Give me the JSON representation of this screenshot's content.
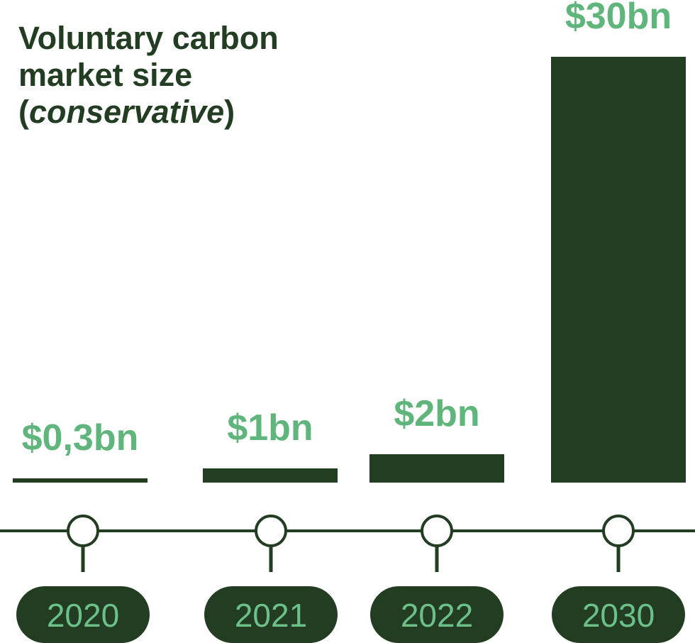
{
  "title": {
    "line1": "Voluntary carbon",
    "line2": "market size",
    "open_paren": "(",
    "qualifier": "conservative",
    "close_paren": ")"
  },
  "colors": {
    "bar": "#223d22",
    "value_label": "#5fb57b",
    "year_label": "#6cc08a",
    "timeline": "#223d22",
    "marker_fill": "#ffffff"
  },
  "chart_data": {
    "type": "bar",
    "title": "Voluntary carbon market size (conservative)",
    "categories": [
      "2020",
      "2021",
      "2022",
      "2030"
    ],
    "values": [
      0.3,
      1,
      2,
      30
    ],
    "value_labels": [
      "$0,3bn",
      "$1bn",
      "$2bn",
      "$30bn"
    ],
    "unit": "bn USD",
    "xlabel": "",
    "ylabel": "",
    "grid": false,
    "legend": "none"
  }
}
